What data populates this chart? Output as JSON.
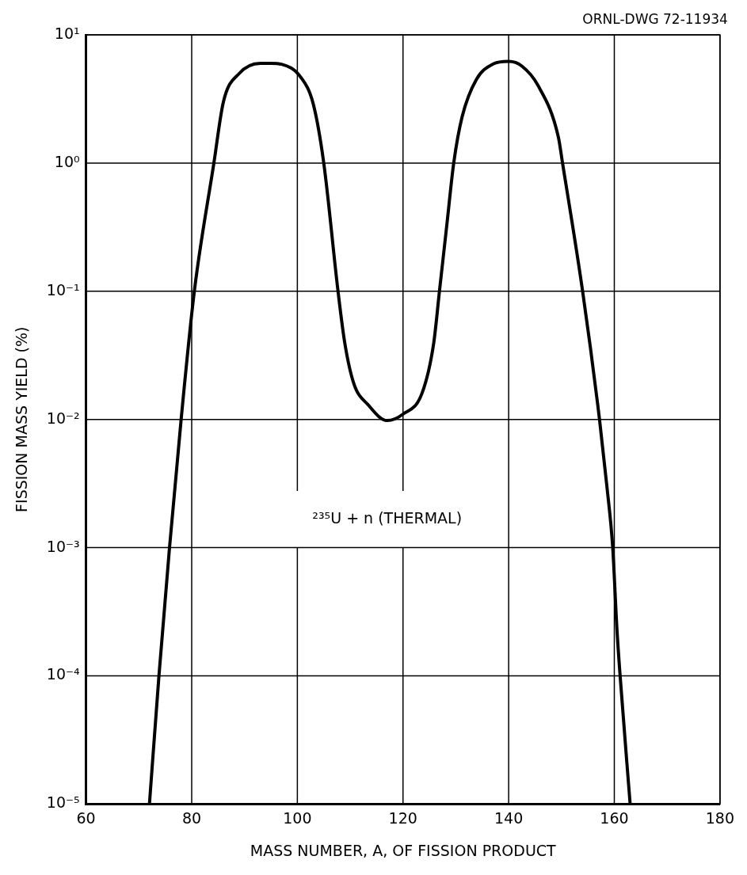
{
  "chart_data": {
    "type": "line",
    "annotations": [
      "ORNL-DWG 72-11934"
    ],
    "xlabel": "MASS NUMBER, A, OF FISSION PRODUCT",
    "ylabel": "FISSION MASS YIELD (%)",
    "series": [
      {
        "name": "²³⁵U + n (THERMAL)",
        "color": "#000000",
        "x": [
          72,
          73.8,
          75.8,
          78,
          80.5,
          84.2,
          86,
          89,
          93,
          95,
          97,
          100.6,
          103,
          105,
          107.7,
          109,
          110.7,
          113.4,
          117,
          120,
          123.6,
          125.8,
          126.9,
          128.3,
          129.6,
          131.2,
          133.9,
          137,
          140,
          142.5,
          145.6,
          149.4,
          150.2,
          154,
          157.2,
          158.6,
          159.7,
          160.5,
          161.1,
          163
        ],
        "values": [
          1e-05,
          0.0001,
          0.001,
          0.01,
          0.1,
          1,
          3,
          5,
          6,
          6,
          5.9,
          4.7,
          2.9,
          1,
          0.1,
          0.039,
          0.019,
          0.013,
          0.0098,
          0.011,
          0.016,
          0.039,
          0.1,
          0.33,
          1,
          2.3,
          4.5,
          5.9,
          6.2,
          5.7,
          4,
          1.6,
          1,
          0.1,
          0.01,
          0.003,
          0.001,
          0.00023,
          0.0001,
          1e-05
        ]
      }
    ],
    "xlim": [
      60,
      180
    ],
    "xticks": [
      60,
      80,
      100,
      120,
      140,
      160,
      180
    ],
    "ylim": [
      1e-05,
      10
    ],
    "yticks": [
      {
        "value": 1e-05,
        "label": "10⁻⁵"
      },
      {
        "value": 0.0001,
        "label": "10⁻⁴"
      },
      {
        "value": 0.001,
        "label": "10⁻³"
      },
      {
        "value": 0.01,
        "label": "10⁻²"
      },
      {
        "value": 0.1,
        "label": "10⁻¹"
      },
      {
        "value": 1,
        "label": "10⁰"
      },
      {
        "value": 10,
        "label": "10¹"
      }
    ],
    "log": "y",
    "grid": true,
    "legend": false,
    "marker": "none",
    "line_style": "solid"
  }
}
